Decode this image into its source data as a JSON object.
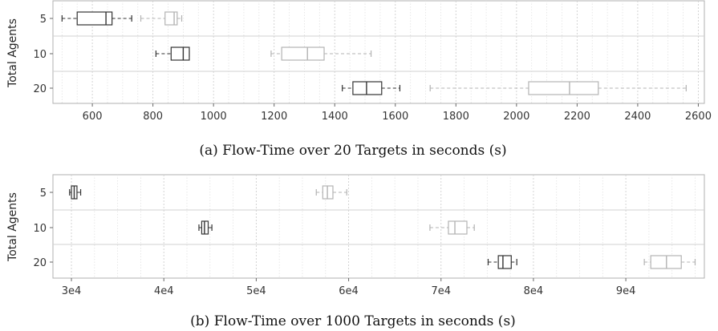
{
  "chart_data": [
    {
      "type": "boxplot",
      "ylabel": "Total Agents",
      "caption": "(a) Flow-Time over 20 Targets in seconds (s)",
      "xlim": [
        470,
        2620
      ],
      "x_ticks": [
        600,
        800,
        1000,
        1200,
        1400,
        1600,
        1800,
        2000,
        2200,
        2400,
        2600
      ],
      "x_tick_labels": [
        "600",
        "800",
        "1000",
        "1200",
        "1400",
        "1600",
        "1800",
        "2000",
        "2200",
        "2400",
        "2600"
      ],
      "categories": [
        "5",
        "10",
        "20"
      ],
      "grid": true,
      "series": [
        {
          "color": "#333333",
          "boxes": [
            {
              "category": "5",
              "whisker_low": 500,
              "q1": 550,
              "median": 645,
              "q3": 665,
              "whisker_high": 730
            },
            {
              "category": "10",
              "whisker_low": 810,
              "q1": 860,
              "median": 900,
              "q3": 920,
              "whisker_high": 920
            },
            {
              "category": "20",
              "whisker_low": 1425,
              "q1": 1460,
              "median": 1505,
              "q3": 1555,
              "whisker_high": 1615
            }
          ]
        },
        {
          "color": "#b3b3b3",
          "boxes": [
            {
              "category": "5",
              "whisker_low": 760,
              "q1": 840,
              "median": 870,
              "q3": 880,
              "whisker_high": 895
            },
            {
              "category": "10",
              "whisker_low": 1190,
              "q1": 1225,
              "median": 1310,
              "q3": 1365,
              "whisker_high": 1520
            },
            {
              "category": "20",
              "whisker_low": 1715,
              "q1": 2040,
              "median": 2175,
              "q3": 2270,
              "whisker_high": 2560
            }
          ]
        }
      ]
    },
    {
      "type": "boxplot",
      "ylabel": "Total Agents",
      "caption": "(b) Flow-Time over 1000 Targets in seconds (s)",
      "xlim": [
        28000,
        98500
      ],
      "x_ticks": [
        30000,
        40000,
        50000,
        60000,
        70000,
        80000,
        90000
      ],
      "x_tick_labels": [
        "3e4",
        "4e4",
        "5e4",
        "6e4",
        "7e4",
        "8e4",
        "9e4"
      ],
      "categories": [
        "5",
        "10",
        "20"
      ],
      "grid": true,
      "series": [
        {
          "color": "#333333",
          "boxes": [
            {
              "category": "5",
              "whisker_low": 29800,
              "q1": 30000,
              "median": 30300,
              "q3": 30600,
              "whisker_high": 31000
            },
            {
              "category": "10",
              "whisker_low": 43800,
              "q1": 44100,
              "median": 44400,
              "q3": 44800,
              "whisker_high": 45200
            },
            {
              "category": "20",
              "whisker_low": 75100,
              "q1": 76200,
              "median": 76700,
              "q3": 77600,
              "whisker_high": 78200
            }
          ]
        },
        {
          "color": "#b3b3b3",
          "boxes": [
            {
              "category": "5",
              "whisker_low": 56500,
              "q1": 57200,
              "median": 57700,
              "q3": 58300,
              "whisker_high": 59800
            },
            {
              "category": "10",
              "whisker_low": 68800,
              "q1": 70800,
              "median": 71500,
              "q3": 72800,
              "whisker_high": 73600
            },
            {
              "category": "20",
              "whisker_low": 92000,
              "q1": 92700,
              "median": 94400,
              "q3": 96000,
              "whisker_high": 97500
            }
          ]
        }
      ]
    }
  ]
}
